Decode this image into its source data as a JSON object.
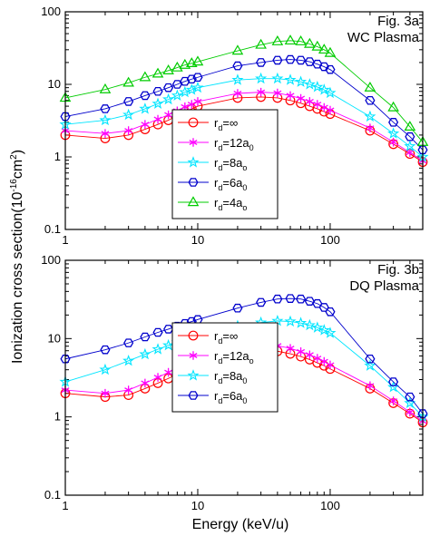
{
  "figure": {
    "ylabel_text": "Ionization  cross section(10",
    "ylabel_exp": "-16",
    "ylabel_unit": "cm",
    "ylabel_unit_exp": "2",
    "ylabel_close": ")",
    "xlabel": "Energy (keV/u)"
  },
  "chart_data": [
    {
      "type": "line",
      "title": "Fig. 3a",
      "subtitle": "WC Plasma",
      "xscale": "log",
      "yscale": "log",
      "xlim": [
        1,
        500
      ],
      "ylim": [
        0.1,
        100
      ],
      "x_ticks": [
        "1",
        "10",
        "100"
      ],
      "y_ticks": [
        "0.1",
        "1",
        "10",
        "100"
      ],
      "legend_position": "bottom-center",
      "x": [
        1,
        2,
        3,
        4,
        5,
        6,
        7,
        8,
        9,
        10,
        20,
        30,
        40,
        50,
        60,
        70,
        80,
        90,
        100,
        200,
        300,
        400,
        500
      ],
      "series": [
        {
          "label_main": "r",
          "label_sub": "d",
          "label_rest": "=∞",
          "rest_sub": "",
          "marker": "circle",
          "color": "#ff0000",
          "values": [
            2.0,
            1.8,
            2.0,
            2.4,
            2.8,
            3.2,
            3.7,
            4.2,
            4.6,
            5.0,
            6.5,
            6.7,
            6.5,
            6.0,
            5.5,
            5.0,
            4.6,
            4.2,
            3.9,
            2.3,
            1.5,
            1.1,
            0.85
          ]
        },
        {
          "label_main": "r",
          "label_sub": "d",
          "label_rest": "=12a",
          "rest_sub": "0",
          "marker": "star6",
          "color": "#ff00ff",
          "values": [
            2.3,
            2.1,
            2.3,
            2.8,
            3.3,
            3.8,
            4.3,
            4.9,
            5.3,
            5.8,
            7.5,
            7.8,
            7.6,
            7.0,
            6.4,
            5.8,
            5.3,
            4.8,
            4.4,
            2.5,
            1.6,
            1.15,
            0.88
          ]
        },
        {
          "label_main": "r",
          "label_sub": "d",
          "label_rest": "=8a",
          "rest_sub": "o",
          "marker": "star5",
          "color": "#00e5ff",
          "values": [
            2.8,
            3.2,
            3.8,
            4.6,
            5.4,
            6.2,
            7.0,
            7.8,
            8.4,
            9.0,
            11.5,
            12.0,
            12.0,
            11.5,
            10.8,
            10.0,
            9.2,
            8.4,
            7.6,
            3.6,
            2.1,
            1.4,
            1.0
          ]
        },
        {
          "label_main": "r",
          "label_sub": "d",
          "label_rest": "=6a",
          "rest_sub": "0",
          "marker": "hexagon",
          "color": "#0000cc",
          "values": [
            3.6,
            4.6,
            5.8,
            7.0,
            8.0,
            9.0,
            10.0,
            11.0,
            11.8,
            12.5,
            18.0,
            20.0,
            21.5,
            22.0,
            21.5,
            20.5,
            19.0,
            17.5,
            16.0,
            6.0,
            3.0,
            1.9,
            1.25
          ]
        },
        {
          "label_main": "r",
          "label_sub": "d",
          "label_rest": "=4a",
          "rest_sub": "o",
          "marker": "triangle",
          "color": "#00cc00",
          "values": [
            6.5,
            8.5,
            10.5,
            12.5,
            14.0,
            15.5,
            17.0,
            18.5,
            19.5,
            20.5,
            29.0,
            35.0,
            39.0,
            40.0,
            39.0,
            36.0,
            33.0,
            30.0,
            27.0,
            9.0,
            4.8,
            2.6,
            1.6
          ]
        }
      ]
    },
    {
      "type": "line",
      "title": "Fig. 3b",
      "subtitle": "DQ Plasma",
      "xscale": "log",
      "yscale": "log",
      "xlim": [
        1,
        500
      ],
      "ylim": [
        0.1,
        100
      ],
      "x_ticks": [
        "1",
        "10",
        "100"
      ],
      "y_ticks": [
        "0.1",
        "1",
        "10",
        "100"
      ],
      "legend_position": "bottom-center",
      "x": [
        1,
        2,
        3,
        4,
        5,
        6,
        7,
        8,
        9,
        10,
        20,
        30,
        40,
        50,
        60,
        70,
        80,
        90,
        100,
        200,
        300,
        400,
        500
      ],
      "series": [
        {
          "label_main": "r",
          "label_sub": "d",
          "label_rest": "=∞",
          "rest_sub": "",
          "marker": "circle",
          "color": "#ff0000",
          "values": [
            2.0,
            1.8,
            1.9,
            2.3,
            2.7,
            3.1,
            3.5,
            4.0,
            4.4,
            4.8,
            6.5,
            7.0,
            6.9,
            6.4,
            5.9,
            5.4,
            4.9,
            4.5,
            4.1,
            2.3,
            1.5,
            1.1,
            0.85
          ]
        },
        {
          "label_main": "r",
          "label_sub": "d",
          "label_rest": "=12a",
          "rest_sub": "o",
          "marker": "star6",
          "color": "#ff00ff",
          "values": [
            2.2,
            2.0,
            2.2,
            2.7,
            3.2,
            3.7,
            4.2,
            4.7,
            5.2,
            5.7,
            8.0,
            8.4,
            8.1,
            7.5,
            6.8,
            6.2,
            5.6,
            5.1,
            4.6,
            2.5,
            1.6,
            1.15,
            0.88
          ]
        },
        {
          "label_main": "r",
          "label_sub": "d",
          "label_rest": "=8a",
          "rest_sub": "0",
          "marker": "star5",
          "color": "#00e5ff",
          "values": [
            2.8,
            4.0,
            5.2,
            6.3,
            7.3,
            8.2,
            9.0,
            9.8,
            10.4,
            11.0,
            14.5,
            16.0,
            16.8,
            16.5,
            15.8,
            14.8,
            13.8,
            12.8,
            11.8,
            4.5,
            2.4,
            1.5,
            1.0
          ]
        },
        {
          "label_main": "r",
          "label_sub": "d",
          "label_rest": "=6a",
          "rest_sub": "0",
          "marker": "hexagon",
          "color": "#0000cc",
          "values": [
            5.5,
            7.2,
            8.8,
            10.5,
            12.0,
            13.2,
            14.4,
            15.6,
            16.5,
            17.5,
            24.5,
            29.0,
            32.0,
            32.5,
            32.0,
            30.0,
            28.0,
            25.0,
            22.0,
            5.5,
            2.8,
            1.8,
            1.1
          ]
        }
      ]
    }
  ]
}
